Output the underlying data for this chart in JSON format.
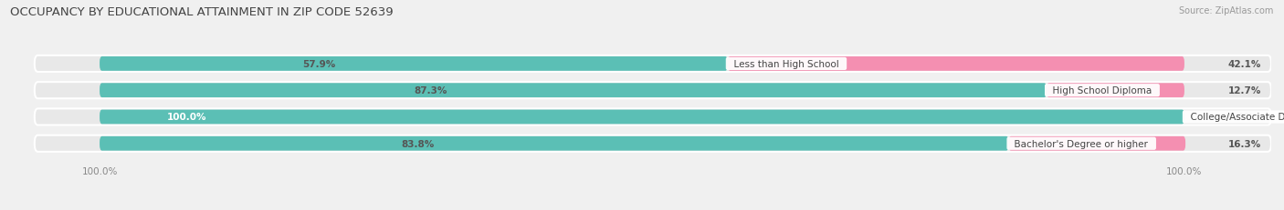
{
  "title": "OCCUPANCY BY EDUCATIONAL ATTAINMENT IN ZIP CODE 52639",
  "source": "Source: ZipAtlas.com",
  "categories": [
    "Less than High School",
    "High School Diploma",
    "College/Associate Degree",
    "Bachelor's Degree or higher"
  ],
  "owner_pct": [
    57.9,
    87.3,
    100.0,
    83.8
  ],
  "renter_pct": [
    42.1,
    12.7,
    0.0,
    16.3
  ],
  "owner_color": "#5BBFB5",
  "renter_color": "#F48FB1",
  "bg_color": "#f0f0f0",
  "bar_bg_color": "#e0e0e0",
  "row_bg_color": "#e8e8e8",
  "title_fontsize": 9.5,
  "source_fontsize": 7,
  "label_fontsize": 7.5,
  "pct_fontsize": 7.5,
  "legend_fontsize": 7.5,
  "bar_height": 0.62,
  "figsize": [
    14.06,
    2.32
  ],
  "dpi": 100
}
